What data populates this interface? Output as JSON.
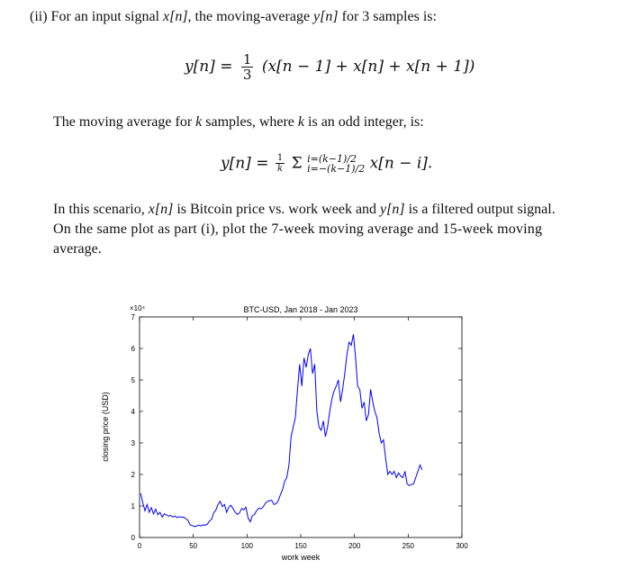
{
  "document": {
    "para1_prefix": "(ii) For an input signal ",
    "para1_x": "x[n]",
    "para1_mid": ", the moving-average ",
    "para1_y": "y[n]",
    "para1_suffix": " for 3 samples is:",
    "eq1_lhs": "y[n] =",
    "eq1_num": "1",
    "eq1_den": "3",
    "eq1_rhs": "(x[n − 1] + x[n] + x[n + 1])",
    "para2_prefix": "The moving average for ",
    "para2_k1": "k",
    "para2_mid": " samples, where ",
    "para2_k2": "k",
    "para2_suffix": " is an odd integer, is:",
    "eq2_lhs": "y[n] =",
    "eq2_num": "1",
    "eq2_den": "k",
    "eq2_sum": "Σ",
    "eq2_upper": "i=(k−1)/2",
    "eq2_lower": "i=−(k−1)/2",
    "eq2_rhs": "x[n − i].",
    "para3_line1_a": "In this scenario, ",
    "para3_line1_x": "x[n]",
    "para3_line1_b": " is Bitcoin price vs. work week and ",
    "para3_line1_y": "y[n]",
    "para3_line1_c": " is a filtered output signal.",
    "para3_line2": "On the same plot as part (i), plot the 7-week moving average and 15-week moving",
    "para3_line3": "average."
  },
  "chart_data": {
    "type": "line",
    "title": "BTC-USD, Jan 2018 - Jan 2023",
    "xlabel": "work week",
    "ylabel": "closing price (USD)",
    "y_multiplier": "×10⁴",
    "xlim": [
      0,
      300
    ],
    "ylim": [
      0,
      70000
    ],
    "x_ticks": [
      "0",
      "50",
      "100",
      "150",
      "200",
      "250",
      "300"
    ],
    "y_ticks": [
      "0",
      "1",
      "2",
      "3",
      "4",
      "5",
      "6",
      "7"
    ],
    "line_color": "#0000ff",
    "series": [
      {
        "x": [
          1,
          3,
          5,
          7,
          9,
          11,
          13,
          15,
          17,
          19,
          21,
          23,
          25,
          27,
          29,
          31,
          33,
          35,
          37,
          39,
          41,
          43,
          45,
          47,
          49,
          51,
          53,
          55,
          57,
          59,
          61,
          63,
          65,
          67,
          69,
          71,
          73,
          75,
          77,
          79,
          81,
          83,
          85,
          87,
          89,
          91,
          93,
          95,
          97,
          99,
          101,
          103,
          105,
          107,
          109,
          111,
          113,
          115,
          117,
          119,
          121,
          123,
          125,
          127,
          129,
          131,
          133,
          135,
          137,
          139,
          141,
          143,
          145,
          147,
          149,
          151,
          153,
          155,
          157,
          159,
          161,
          163,
          165,
          167,
          169,
          171,
          173,
          175,
          177,
          179,
          181,
          183,
          185,
          187,
          189,
          191,
          193,
          195,
          197,
          199,
          201,
          203,
          205,
          207,
          209,
          211,
          213,
          215,
          217,
          219,
          221,
          223,
          225,
          227,
          229,
          231,
          233,
          235,
          237,
          239,
          241,
          243,
          245,
          247,
          249,
          251,
          253,
          255,
          257,
          259,
          261,
          263
        ],
        "values": [
          14000,
          11000,
          8500,
          10500,
          8000,
          9500,
          7500,
          9000,
          7200,
          8000,
          6500,
          7500,
          7200,
          6800,
          7000,
          6500,
          6800,
          6300,
          6600,
          6400,
          6500,
          6000,
          5500,
          4000,
          3800,
          3500,
          3600,
          3900,
          3700,
          4000,
          3900,
          4200,
          5200,
          5800,
          7800,
          8700,
          10500,
          11500,
          9800,
          10500,
          8000,
          9600,
          10200,
          9200,
          8000,
          7300,
          7800,
          9200,
          8800,
          9600,
          6200,
          5000,
          6900,
          7300,
          8600,
          9300,
          9100,
          9700,
          10800,
          11500,
          11700,
          11800,
          10500,
          10700,
          11600,
          13500,
          15100,
          17800,
          19000,
          23000,
          32000,
          35000,
          38000,
          47000,
          55000,
          48000,
          57000,
          54000,
          58000,
          60000,
          52000,
          55000,
          40000,
          35000,
          34000,
          37000,
          32000,
          35000,
          40000,
          44000,
          46500,
          48000,
          50000,
          43000,
          47000,
          52000,
          58000,
          62000,
          61000,
          64500,
          57000,
          48000,
          47000,
          41000,
          43000,
          37000,
          39000,
          47000,
          43000,
          40000,
          38000,
          33000,
          30000,
          31000,
          25000,
          20000,
          21000,
          20000,
          21000,
          19000,
          20500,
          19500,
          19000,
          21000,
          17000,
          16500,
          16800,
          17000,
          19000,
          21000,
          23000,
          21500
        ]
      }
    ]
  }
}
